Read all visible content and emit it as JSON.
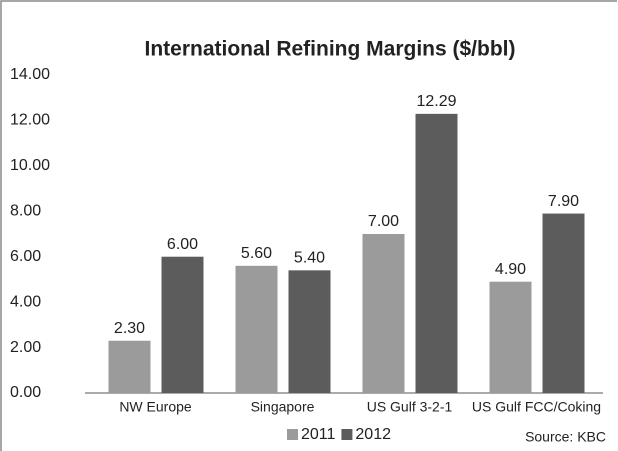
{
  "chart_data": {
    "type": "bar",
    "title": "International Refining Margins ($/bbl)",
    "categories": [
      "NW Europe",
      "Singapore",
      "US Gulf 3-2-1",
      "US Gulf FCC/Coking"
    ],
    "series": [
      {
        "name": "2011",
        "color": "#9b9b9b",
        "values": [
          2.3,
          5.6,
          7.0,
          4.9
        ],
        "value_labels": [
          "2.30",
          "5.60",
          "7.00",
          "4.90"
        ]
      },
      {
        "name": "2012",
        "color": "#5c5c5c",
        "values": [
          6.0,
          5.4,
          12.29,
          7.9
        ],
        "value_labels": [
          "6.00",
          "5.40",
          "12.29",
          "7.90"
        ]
      }
    ],
    "ylim": [
      0,
      14
    ],
    "yticks": [
      {
        "value": 0,
        "label": "0.00"
      },
      {
        "value": 2,
        "label": "2.00"
      },
      {
        "value": 4,
        "label": "4.00"
      },
      {
        "value": 6,
        "label": "6.00"
      },
      {
        "value": 8,
        "label": "8.00"
      },
      {
        "value": 10,
        "label": "10.00"
      },
      {
        "value": 12,
        "label": "12.00"
      },
      {
        "value": 14,
        "label": "14.00"
      }
    ],
    "grid": false,
    "source": "Source: KBC"
  }
}
